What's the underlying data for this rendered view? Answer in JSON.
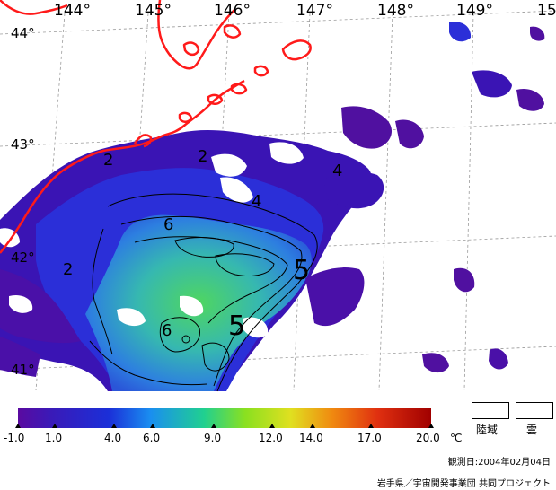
{
  "longitude_labels": [
    "144°",
    "145°",
    "146°",
    "147°",
    "148°",
    "149°",
    "15"
  ],
  "latitude_labels": [
    "44°",
    "43°",
    "42°",
    "41°"
  ],
  "contour_labels": [
    "2",
    "2",
    "4",
    "4",
    "6",
    "5",
    "6",
    "5",
    "2"
  ],
  "colorbar": {
    "ticks": [
      "-1.0",
      "1.0",
      "4.0",
      "6.0",
      "9.0",
      "12.0",
      "14.0",
      "17.0",
      "20.0"
    ],
    "unit": "℃"
  },
  "legend": {
    "land": "陸域",
    "cloud": "雲"
  },
  "observation_date": "観測日:2004年02月04日",
  "credit": "岩手県／宇宙開発事業団 共同プロジェクト",
  "colors": {
    "coastline": "#ff1a1a",
    "cold": "#3b10b8",
    "mid": "#2a6df0",
    "warm": "#33c3a8",
    "warmest": "#5ae05a"
  }
}
